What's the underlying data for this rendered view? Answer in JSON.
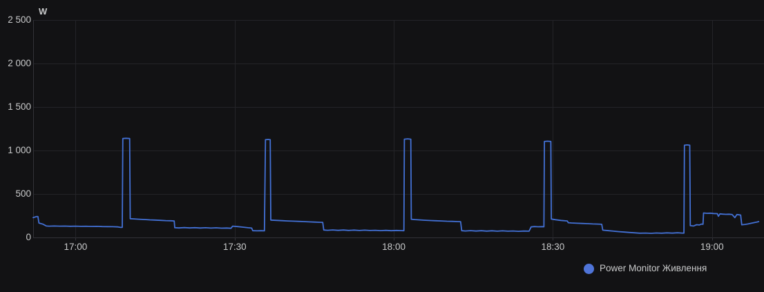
{
  "panel": {
    "unit_label": "W"
  },
  "colors": {
    "background": "#121214",
    "grid": "#242428",
    "axis": "#323238",
    "text": "#c9cacb",
    "series_blue": "#4371d6"
  },
  "legend": {
    "items": [
      {
        "label": "Power Monitor Живлення",
        "color": "#4f74d8"
      }
    ]
  },
  "chart_data": {
    "type": "line",
    "title": "",
    "xlabel": "",
    "ylabel": "W",
    "unit_label": "W",
    "grid": true,
    "legend_position": "bottom-right",
    "ylim": [
      0,
      2500
    ],
    "y_ticks": [
      {
        "value": 0,
        "label": "0"
      },
      {
        "value": 500,
        "label": "500"
      },
      {
        "value": 1000,
        "label": "1 000"
      },
      {
        "value": 1500,
        "label": "1 500"
      },
      {
        "value": 2000,
        "label": "2 000"
      },
      {
        "value": 2500,
        "label": "2 500"
      }
    ],
    "xlim_minutes_from_1700": [
      -8,
      129.8
    ],
    "x_ticks": [
      {
        "minute": 0,
        "label": "17:00"
      },
      {
        "minute": 30,
        "label": "17:30"
      },
      {
        "minute": 60,
        "label": "18:00"
      },
      {
        "minute": 90,
        "label": "18:30"
      },
      {
        "minute": 120,
        "label": "19:00"
      }
    ],
    "series": [
      {
        "name": "Power Monitor Живлення",
        "color": "#4371d6",
        "unit": "W",
        "points_minutes_watts": [
          [
            -8,
            225
          ],
          [
            -7.6,
            232
          ],
          [
            -7.3,
            238
          ],
          [
            -7.1,
            236
          ],
          [
            -6.9,
            162
          ],
          [
            -6.5,
            155
          ],
          [
            -6.2,
            150
          ],
          [
            -5.5,
            128
          ],
          [
            -5,
            126
          ],
          [
            -4,
            128
          ],
          [
            -3,
            126
          ],
          [
            -2,
            127
          ],
          [
            -1,
            125
          ],
          [
            0,
            126
          ],
          [
            1,
            124
          ],
          [
            2,
            125
          ],
          [
            3,
            123
          ],
          [
            4,
            124
          ],
          [
            5,
            122
          ],
          [
            6,
            121
          ],
          [
            7,
            120
          ],
          [
            8,
            118
          ],
          [
            8.4,
            113
          ],
          [
            8.8,
            112
          ],
          [
            8.9,
            1135
          ],
          [
            9.5,
            1138
          ],
          [
            10.2,
            1135
          ],
          [
            10.3,
            212
          ],
          [
            11,
            210
          ],
          [
            12,
            206
          ],
          [
            13,
            203
          ],
          [
            14,
            199
          ],
          [
            15,
            196
          ],
          [
            16,
            193
          ],
          [
            17,
            190
          ],
          [
            18,
            188
          ],
          [
            18.6,
            186
          ],
          [
            18.7,
            108
          ],
          [
            19.5,
            106
          ],
          [
            20.5,
            110
          ],
          [
            21.5,
            106
          ],
          [
            22.5,
            109
          ],
          [
            23.5,
            105
          ],
          [
            24.5,
            108
          ],
          [
            25.5,
            104
          ],
          [
            26.5,
            107
          ],
          [
            27.5,
            103
          ],
          [
            28.5,
            105
          ],
          [
            29.3,
            102
          ],
          [
            29.6,
            126
          ],
          [
            30.5,
            122
          ],
          [
            31.5,
            115
          ],
          [
            32.5,
            108
          ],
          [
            33.2,
            104
          ],
          [
            33.4,
            74
          ],
          [
            34.2,
            72
          ],
          [
            35,
            74
          ],
          [
            35.6,
            72
          ],
          [
            35.8,
            1122
          ],
          [
            36.3,
            1125
          ],
          [
            36.7,
            1122
          ],
          [
            36.8,
            196
          ],
          [
            38,
            192
          ],
          [
            39,
            189
          ],
          [
            40,
            186
          ],
          [
            41,
            184
          ],
          [
            42,
            181
          ],
          [
            43,
            179
          ],
          [
            44,
            176
          ],
          [
            45,
            173
          ],
          [
            46,
            171
          ],
          [
            46.6,
            170
          ],
          [
            46.8,
            82
          ],
          [
            47.5,
            79
          ],
          [
            48.5,
            83
          ],
          [
            49.5,
            78
          ],
          [
            50.5,
            82
          ],
          [
            51.5,
            77
          ],
          [
            52.5,
            81
          ],
          [
            53.5,
            76
          ],
          [
            54.5,
            80
          ],
          [
            55.5,
            76
          ],
          [
            56.5,
            79
          ],
          [
            57.5,
            75
          ],
          [
            58.5,
            78
          ],
          [
            59.5,
            74
          ],
          [
            60.5,
            77
          ],
          [
            61.5,
            75
          ],
          [
            61.9,
            74
          ],
          [
            62,
            1128
          ],
          [
            62.6,
            1132
          ],
          [
            63.2,
            1128
          ],
          [
            63.3,
            206
          ],
          [
            64,
            202
          ],
          [
            65,
            198
          ],
          [
            66,
            194
          ],
          [
            67,
            191
          ],
          [
            68,
            188
          ],
          [
            69,
            186
          ],
          [
            70,
            183
          ],
          [
            71,
            181
          ],
          [
            72,
            179
          ],
          [
            72.6,
            178
          ],
          [
            72.8,
            74
          ],
          [
            73.5,
            71
          ],
          [
            74.5,
            75
          ],
          [
            75.5,
            70
          ],
          [
            76.5,
            74
          ],
          [
            77.5,
            69
          ],
          [
            78.5,
            73
          ],
          [
            79.5,
            68
          ],
          [
            80.5,
            72
          ],
          [
            81.5,
            68
          ],
          [
            82.5,
            71
          ],
          [
            83.5,
            67
          ],
          [
            84.5,
            70
          ],
          [
            85.5,
            68
          ],
          [
            85.9,
            118
          ],
          [
            86.5,
            122
          ],
          [
            87.2,
            119
          ],
          [
            88,
            121
          ],
          [
            88.3,
            119
          ],
          [
            88.4,
            1102
          ],
          [
            89,
            1105
          ],
          [
            89.6,
            1102
          ],
          [
            89.7,
            208
          ],
          [
            90.5,
            200
          ],
          [
            91.5,
            192
          ],
          [
            92.7,
            186
          ],
          [
            92.9,
            166
          ],
          [
            93.5,
            163
          ],
          [
            94.5,
            160
          ],
          [
            95.5,
            157
          ],
          [
            96.5,
            155
          ],
          [
            97.5,
            152
          ],
          [
            98.5,
            150
          ],
          [
            99.2,
            148
          ],
          [
            99.4,
            80
          ],
          [
            100.5,
            74
          ],
          [
            101.5,
            68
          ],
          [
            102.5,
            63
          ],
          [
            103.5,
            58
          ],
          [
            104.5,
            53
          ],
          [
            105.5,
            49
          ],
          [
            106.4,
            45
          ],
          [
            107.5,
            47
          ],
          [
            108.5,
            44
          ],
          [
            109.5,
            48
          ],
          [
            110.5,
            45
          ],
          [
            111.5,
            49
          ],
          [
            112.5,
            46
          ],
          [
            113.5,
            50
          ],
          [
            114.3,
            47
          ],
          [
            114.7,
            46
          ],
          [
            114.8,
            1058
          ],
          [
            115.3,
            1062
          ],
          [
            115.8,
            1058
          ],
          [
            115.9,
            132
          ],
          [
            116.5,
            128
          ],
          [
            117.1,
            143
          ],
          [
            117.6,
            140
          ],
          [
            118,
            150
          ],
          [
            118.3,
            148
          ],
          [
            118.4,
            278
          ],
          [
            119,
            274
          ],
          [
            119.7,
            276
          ],
          [
            120.3,
            272
          ],
          [
            121,
            270
          ],
          [
            121.2,
            240
          ],
          [
            121.5,
            268
          ],
          [
            122,
            265
          ],
          [
            122.6,
            262
          ],
          [
            123.2,
            264
          ],
          [
            123.8,
            260
          ],
          [
            124.3,
            224
          ],
          [
            124.7,
            260
          ],
          [
            125.2,
            256
          ],
          [
            125.4,
            254
          ],
          [
            125.6,
            142
          ],
          [
            126.2,
            146
          ],
          [
            126.8,
            152
          ],
          [
            127.4,
            160
          ],
          [
            128,
            168
          ],
          [
            128.5,
            174
          ],
          [
            128.8,
            179
          ]
        ]
      }
    ]
  }
}
